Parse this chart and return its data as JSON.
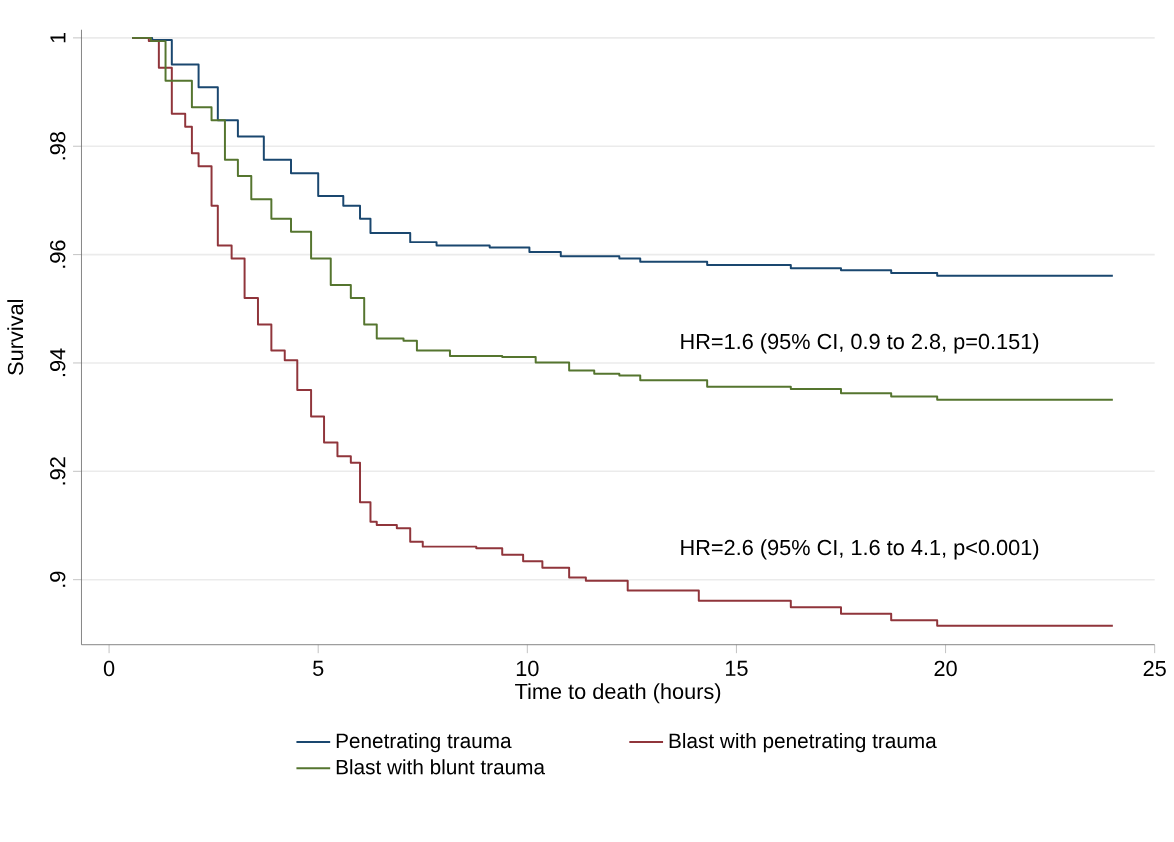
{
  "chart_data": {
    "type": "step",
    "xlabel": "Time to death (hours)",
    "ylabel": "Survival",
    "xlim": [
      -0.66,
      25
    ],
    "ylim": [
      0.888,
      1.0015
    ],
    "xticks": [
      0,
      5,
      10,
      15,
      20,
      25
    ],
    "yticks": [
      {
        "value": 0.9,
        "label": ".9"
      },
      {
        "value": 0.92,
        "label": ".92"
      },
      {
        "value": 0.94,
        "label": ".94"
      },
      {
        "value": 0.96,
        "label": ".96"
      },
      {
        "value": 0.98,
        "label": ".98"
      },
      1
    ],
    "grid": "y",
    "legend": "bottom",
    "line_style": "solid",
    "marker": "none",
    "annotations": [
      "HR=1.6 (95% CI, 0.9 to 2.8, p=0.151)",
      "HR=2.6 (95% CI, 1.6 to 4.1, p<0.001)"
    ],
    "series": [
      {
        "name": "Penetrating trauma",
        "color": "#1a476f",
        "x": [
          0.55,
          1.03,
          1.5,
          2.14,
          2.6,
          3.08,
          3.7,
          4.35,
          5.0,
          5.6,
          6.0,
          6.25,
          7.2,
          7.83,
          9.1,
          10.05,
          10.8,
          12.2,
          12.7,
          14.3,
          16.3,
          17.5,
          18.7,
          19.8,
          24
        ],
        "values": [
          1,
          0.9996,
          0.9951,
          0.9909,
          0.9848,
          0.9818,
          0.9775,
          0.975,
          0.9708,
          0.969,
          0.9666,
          0.964,
          0.9623,
          0.9617,
          0.9613,
          0.9605,
          0.9597,
          0.9593,
          0.9587,
          0.9581,
          0.9575,
          0.9571,
          0.9566,
          0.9561,
          0.9561
        ]
      },
      {
        "name": "Blast with penetrating trauma",
        "color": "#90353b",
        "x": [
          0.55,
          0.95,
          1.19,
          1.5,
          1.82,
          1.98,
          2.14,
          2.45,
          2.6,
          2.93,
          3.24,
          3.56,
          3.88,
          4.2,
          4.5,
          4.83,
          5.14,
          5.46,
          5.78,
          6.0,
          6.25,
          6.4,
          6.88,
          7.2,
          7.5,
          8.78,
          9.4,
          9.9,
          10.36,
          11.0,
          11.4,
          12.4,
          14.1,
          16.3,
          17.5,
          18.7,
          19.8,
          24
        ],
        "values": [
          1,
          0.9994,
          0.9945,
          0.986,
          0.9836,
          0.9787,
          0.9763,
          0.969,
          0.9617,
          0.9593,
          0.952,
          0.9471,
          0.9423,
          0.9405,
          0.935,
          0.9301,
          0.9253,
          0.9228,
          0.9216,
          0.9143,
          0.9107,
          0.9101,
          0.9095,
          0.907,
          0.9061,
          0.9058,
          0.9046,
          0.9034,
          0.9022,
          0.9004,
          0.8998,
          0.898,
          0.8961,
          0.8949,
          0.8937,
          0.8925,
          0.8915,
          0.8915
        ]
      },
      {
        "name": "Blast with blunt trauma",
        "color": "#55752f",
        "x": [
          0.55,
          1.0,
          1.35,
          1.98,
          2.45,
          2.77,
          3.08,
          3.4,
          3.88,
          4.35,
          4.83,
          5.3,
          5.78,
          6.1,
          6.4,
          7.04,
          7.36,
          8.15,
          9.4,
          10.2,
          11.0,
          11.6,
          12.2,
          12.7,
          14.3,
          16.3,
          17.5,
          18.7,
          19.8,
          24
        ],
        "values": [
          1,
          0.9994,
          0.9921,
          0.9872,
          0.9848,
          0.9775,
          0.9745,
          0.9702,
          0.9666,
          0.9642,
          0.9593,
          0.9544,
          0.952,
          0.9471,
          0.9445,
          0.9441,
          0.9423,
          0.9413,
          0.9411,
          0.9401,
          0.9386,
          0.938,
          0.9377,
          0.9368,
          0.9356,
          0.9352,
          0.9344,
          0.9338,
          0.9332,
          0.9332
        ]
      }
    ]
  }
}
